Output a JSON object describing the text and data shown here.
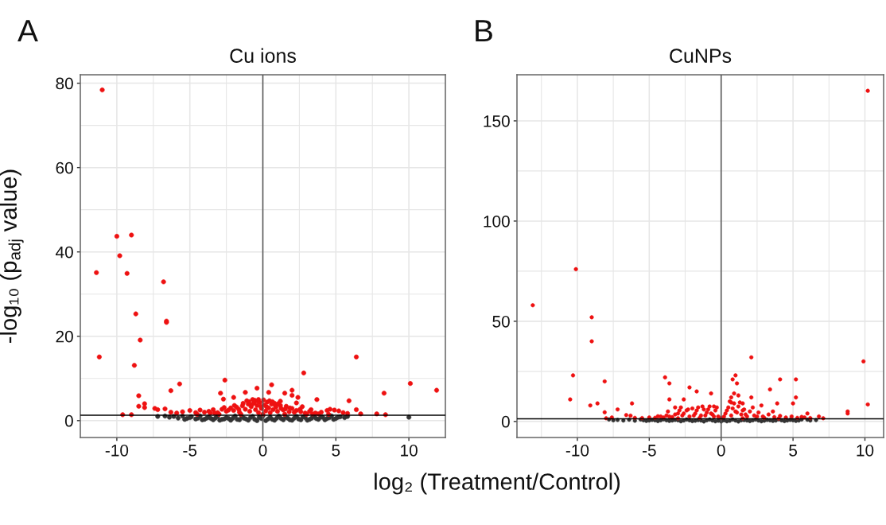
{
  "chart_data": [
    {
      "type": "scatter",
      "title": "Cu ions",
      "xlabel": "log₂ (Treatment/Control)",
      "ylabel": "-log₁₀ (p$_{adj}$ value)",
      "annotations": [
        "A"
      ],
      "marker": "circle",
      "grid": true,
      "xlim": [
        -12.5,
        12.5
      ],
      "ylim": [
        -4,
        82
      ],
      "xticks": [
        -10,
        -5,
        0,
        5,
        10
      ],
      "yticks": [
        0,
        20,
        40,
        60,
        80
      ],
      "ref_lines": [
        {
          "axis": "x",
          "value": 0,
          "color": "#555555"
        },
        {
          "axis": "y",
          "value": 1.3,
          "color": "#000000"
        }
      ],
      "series": [
        {
          "color": "#333333",
          "x": [
            -7.2,
            -6.7,
            -6.4,
            -6.1,
            -5.8,
            -5.5,
            -5.2,
            -4.9,
            -4.6,
            -4.3,
            -4.0,
            -3.7,
            -3.4,
            -3.1,
            -2.8,
            -2.5,
            -2.2,
            -1.9,
            -1.6,
            -1.3,
            -1.0,
            -0.7,
            -0.4,
            -0.1,
            0.0,
            0.2,
            0.5,
            0.8,
            1.1,
            1.4,
            1.7,
            2.0,
            2.3,
            2.6,
            2.9,
            3.2,
            3.5,
            3.8,
            4.1,
            4.4,
            4.7,
            5.0,
            5.3,
            5.6,
            5.8,
            10.0,
            -5.35,
            -5.0,
            -4.45,
            -4.15,
            -3.85,
            -3.55,
            -3.25,
            -2.95,
            -2.65,
            -2.35,
            -2.05,
            -1.75,
            -1.45,
            -1.15,
            -0.85,
            -0.55,
            -0.25,
            0.35,
            0.65,
            0.95,
            1.25,
            1.55,
            1.85,
            2.15,
            2.45,
            2.75,
            3.05,
            3.35,
            3.65,
            3.95,
            4.25,
            4.55,
            4.85,
            5.15
          ],
          "values": [
            1.0,
            1.1,
            0.8,
            1.0,
            0.6,
            1.1,
            0.5,
            0.9,
            0.4,
            1.1,
            0.3,
            0.8,
            0.2,
            1.0,
            0.3,
            0.7,
            0.1,
            1.1,
            0.2,
            0.6,
            0.1,
            1.0,
            0.0,
            0.5,
            1.1,
            0.0,
            0.8,
            0.1,
            1.1,
            0.2,
            0.6,
            0.1,
            1.0,
            0.2,
            0.7,
            0.3,
            1.1,
            0.3,
            0.8,
            0.5,
            1.1,
            0.5,
            0.9,
            0.7,
            1.0,
            0.8,
            0.3,
            0.7,
            0.6,
            0.2,
            0.6,
            0.5,
            0.6,
            0.1,
            0.4,
            0.5,
            0.6,
            0.3,
            0.9,
            0.4,
            0.7,
            0.3,
            0.8,
            0.4,
            0.3,
            0.6,
            0.5,
            0.8,
            0.2,
            0.6,
            0.4,
            0.9,
            0.1,
            0.6,
            0.5,
            0.8,
            0.2,
            0.7,
            0.3,
            0.8
          ]
        },
        {
          "color": "#ee1111",
          "x": [
            -11.0,
            -10.0,
            -9.0,
            -9.8,
            -11.4,
            -9.3,
            -6.8,
            -8.7,
            -6.6,
            -6.6,
            -8.4,
            -11.2,
            -8.8,
            6.4,
            2.8,
            -2.6,
            10.1,
            -5.7,
            0.6,
            -0.4,
            -6.3,
            11.9,
            2.0,
            -8.5,
            -2.9,
            -1.2,
            0.4,
            1.5,
            8.3,
            2.0,
            -2.0,
            3.7,
            -2.7,
            2.4,
            5.9,
            -8.5,
            -8.1,
            -8.1,
            -7.4,
            -7.2,
            -6.7,
            -9.6,
            -9.0,
            7.8,
            8.4,
            6.7,
            6.4,
            2.7,
            3.3,
            -1.1,
            -0.7,
            -0.3,
            1.2,
            2.3,
            -6.3,
            -5.9,
            -5.5,
            -5.0,
            -4.6,
            -4.3,
            -4.0,
            -3.7,
            -3.4,
            -3.1,
            -2.8,
            -2.5,
            -2.2,
            -2.0,
            -1.8,
            -1.6,
            -1.4,
            -1.2,
            -1.0,
            -0.9,
            -0.8,
            -0.6,
            -0.5,
            -0.4,
            -0.3,
            -0.2,
            -0.1,
            0.1,
            0.2,
            0.3,
            0.4,
            0.5,
            0.6,
            0.7,
            0.8,
            0.9,
            1.0,
            1.2,
            1.4,
            1.6,
            1.8,
            2.0,
            2.3,
            2.6,
            2.9,
            3.2,
            3.6,
            4.0,
            4.4,
            4.6,
            4.9,
            5.2,
            5.5,
            5.8,
            -3.0,
            -1.5,
            0.0,
            1.5,
            3.0,
            -4.5,
            4.5,
            -0.95,
            -0.75,
            -0.55,
            -0.35,
            -0.15,
            0.05,
            0.25,
            0.45,
            0.65,
            0.85,
            1.05,
            1.25,
            -1.35,
            -1.65,
            -1.95,
            -2.35,
            -2.65,
            1.55,
            1.85,
            2.15,
            2.55,
            -3.6,
            -3.3,
            3.4,
            3.8
          ],
          "values": [
            78.4,
            43.7,
            44.0,
            39.1,
            35.1,
            34.9,
            32.9,
            25.3,
            23.6,
            23.3,
            19.1,
            15.1,
            13.1,
            15.1,
            11.3,
            9.6,
            8.8,
            8.7,
            8.5,
            7.7,
            7.1,
            7.2,
            7.2,
            5.9,
            6.5,
            6.7,
            6.7,
            6.5,
            6.5,
            6.0,
            5.5,
            5.0,
            5.1,
            5.5,
            4.7,
            3.4,
            4.0,
            3.1,
            2.9,
            2.6,
            2.8,
            1.4,
            1.4,
            1.6,
            1.4,
            1.6,
            2.6,
            3.3,
            2.6,
            4.7,
            5.0,
            5.0,
            4.6,
            4.2,
            2.0,
            1.8,
            2.1,
            2.4,
            1.9,
            2.5,
            2.0,
            2.2,
            2.6,
            1.9,
            2.7,
            2.2,
            3.0,
            2.4,
            3.2,
            2.0,
            3.5,
            2.7,
            3.9,
            2.2,
            3.3,
            4.2,
            2.6,
            3.6,
            1.9,
            4.3,
            2.9,
            3.7,
            2.3,
            4.4,
            3.0,
            1.9,
            3.9,
            2.6,
            4.1,
            3.2,
            2.2,
            3.6,
            2.5,
            3.4,
            2.1,
            2.9,
            2.4,
            2.1,
            1.8,
            2.2,
            1.8,
            2.0,
            2.4,
            2.7,
            2.5,
            2.3,
            1.9,
            1.7,
            1.5,
            1.5,
            1.5,
            1.5,
            1.5,
            1.5,
            1.5,
            4.5,
            3.8,
            4.8,
            4.6,
            3.4,
            4.9,
            3.3,
            4.7,
            4.5,
            3.6,
            4.0,
            2.9,
            4.1,
            2.7,
            3.6,
            2.5,
            3.1,
            2.8,
            3.0,
            2.0,
            2.7,
            1.8,
            1.8,
            1.6,
            1.6
          ]
        }
      ]
    },
    {
      "type": "scatter",
      "title": "CuNPs",
      "annotations": [
        "B"
      ],
      "marker": "circle",
      "grid": true,
      "xlim": [
        -14.2,
        11.3
      ],
      "ylim": [
        -8,
        173
      ],
      "xticks": [
        -10,
        -5,
        0,
        5,
        10
      ],
      "yticks": [
        0,
        50,
        100,
        150
      ],
      "ref_lines": [
        {
          "axis": "x",
          "value": 0,
          "color": "#555555"
        },
        {
          "axis": "y",
          "value": 1.3,
          "color": "#000000"
        }
      ],
      "series": [
        {
          "color": "#333333",
          "x": [
            -7.8,
            -7.5,
            -7.2,
            -6.8,
            -6.4,
            -6.0,
            -5.6,
            -5.2,
            -4.8,
            -4.4,
            -4.0,
            -3.6,
            -3.2,
            -2.8,
            -2.4,
            -2.0,
            -1.6,
            -1.2,
            -0.8,
            -0.4,
            0.0,
            0.0,
            0.4,
            0.8,
            1.2,
            1.6,
            2.0,
            2.4,
            2.8,
            3.2,
            3.6,
            4.0,
            4.4,
            4.8,
            5.2,
            5.6,
            6.0,
            6.2,
            6.6,
            -5.4,
            -5.0,
            -4.6,
            -4.2,
            -3.8,
            -3.4,
            -3.0,
            -2.6,
            -2.2,
            -1.8,
            -1.4,
            -1.0,
            -0.6,
            -0.2,
            0.2,
            0.6,
            1.0,
            1.4,
            1.8,
            2.2,
            2.6,
            3.0,
            3.4,
            3.8,
            4.2,
            4.6,
            5.0,
            5.4
          ],
          "values": [
            1.0,
            0.6,
            0.8,
            0.5,
            0.9,
            0.4,
            1.0,
            0.3,
            0.8,
            0.2,
            1.1,
            0.3,
            0.8,
            0.1,
            1.0,
            0.2,
            0.7,
            0.0,
            1.0,
            0.1,
            0.6,
            0.0,
            0.1,
            1.0,
            0.0,
            0.7,
            0.2,
            1.0,
            0.1,
            0.8,
            0.3,
            1.1,
            0.2,
            0.8,
            0.3,
            1.0,
            0.9,
            0.5,
            0.7,
            0.6,
            0.5,
            0.6,
            0.6,
            0.6,
            0.5,
            0.6,
            0.5,
            0.6,
            0.4,
            0.5,
            0.6,
            0.5,
            0.4,
            0.6,
            0.4,
            0.5,
            0.6,
            0.5,
            0.6,
            0.5,
            0.4,
            0.6,
            0.5,
            0.6,
            0.5,
            0.6,
            0.5
          ]
        },
        {
          "color": "#ee1111",
          "x": [
            10.2,
            -10.1,
            -13.1,
            -9.0,
            -9.0,
            2.1,
            9.9,
            -10.3,
            -3.9,
            1.0,
            0.8,
            4.1,
            5.2,
            -8.1,
            -3.6,
            1.1,
            -2.2,
            -1.7,
            3.4,
            -0.7,
            -10.5,
            5.2,
            2.1,
            -3.6,
            -2.6,
            -9.1,
            -8.6,
            -6.2,
            3.9,
            5.0,
            10.2,
            8.8,
            8.8,
            -8.1,
            -7.2,
            -6.6,
            -6.3,
            2.8,
            3.6,
            6.0,
            -2.8,
            -3.2,
            -3.7,
            -0.5,
            0.7,
            1.5,
            0.7,
            0.9,
            1.2,
            -8.0,
            -7.6,
            6.8,
            7.1,
            5.6,
            -5.0,
            -4.6,
            -4.2,
            -3.8,
            -3.4,
            -3.0,
            -2.7,
            -2.4,
            -2.2,
            -2.0,
            -1.8,
            -1.6,
            -1.4,
            -1.2,
            -1.0,
            -0.8,
            -0.6,
            -0.4,
            -0.2,
            0.3,
            0.5,
            0.7,
            0.9,
            1.0,
            1.2,
            1.4,
            1.6,
            1.8,
            2.0,
            2.3,
            2.6,
            2.9,
            3.3,
            3.7,
            4.1,
            4.5,
            4.9,
            5.3,
            5.8,
            6.2,
            -5.5,
            -6.0,
            -3.0,
            -1.5,
            0.0,
            1.5,
            3.0,
            4.0,
            -3.2,
            -2.9,
            -2.6,
            -2.3,
            -1.9,
            -1.7,
            -1.3,
            -1.1,
            -0.9,
            -0.7,
            -0.5,
            -0.3,
            0.2,
            0.4,
            0.6,
            0.8,
            1.1,
            1.3,
            1.5,
            1.7,
            2.2,
            2.5,
            -4.0,
            -4.4,
            -3.6
          ],
          "values": [
            165,
            76,
            58,
            52,
            40,
            32,
            30,
            23,
            22,
            23,
            21,
            21,
            21,
            20,
            19,
            19,
            17,
            15,
            16,
            14,
            11,
            12,
            12,
            11,
            11,
            8,
            9,
            9,
            9,
            9,
            8.5,
            5,
            4,
            4.6,
            6,
            3.2,
            2.9,
            8,
            5,
            4,
            7,
            7,
            5,
            7.5,
            9.5,
            9,
            12,
            14,
            13,
            1.6,
            2.0,
            2.5,
            1.6,
            2.3,
            2.0,
            1.8,
            2.5,
            3.0,
            2.2,
            4.0,
            3.0,
            5.5,
            2.5,
            6.5,
            4.0,
            7.0,
            3.0,
            6.0,
            4.5,
            7.5,
            3.5,
            5.5,
            2.5,
            4.0,
            7.0,
            3.0,
            9.0,
            5.0,
            7.5,
            3.5,
            6.0,
            2.5,
            5.0,
            3.0,
            4.5,
            2.5,
            3.5,
            2.2,
            2.8,
            2.0,
            2.5,
            1.8,
            2.0,
            1.7,
            1.7,
            1.8,
            1.6,
            1.8,
            1.7,
            1.6,
            1.8,
            1.5,
            3.5,
            5.5,
            4.0,
            6.0,
            3.0,
            5.5,
            7.5,
            3.0,
            6.0,
            4.0,
            2.5,
            7.0,
            2.5,
            5.5,
            10.0,
            6.5,
            4.5,
            9.5,
            5.5,
            3.5,
            7.0,
            2.5,
            2.0,
            2.6,
            2.5
          ]
        }
      ]
    }
  ]
}
